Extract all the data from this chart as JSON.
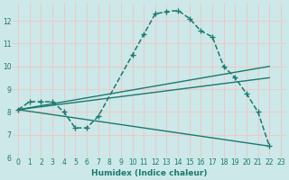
{
  "xlabel": "Humidex (Indice chaleur)",
  "bg_color": "#cce8e8",
  "grid_color": "#f0c8c8",
  "line_color": "#1a7a6e",
  "xlim": [
    -0.5,
    23.5
  ],
  "ylim": [
    6.0,
    12.8
  ],
  "yticks": [
    6,
    7,
    8,
    9,
    10,
    11,
    12
  ],
  "xticks": [
    0,
    1,
    2,
    3,
    4,
    5,
    6,
    7,
    8,
    9,
    10,
    11,
    12,
    13,
    14,
    15,
    16,
    17,
    18,
    19,
    20,
    21,
    22,
    23
  ],
  "series": [
    {
      "x": [
        0,
        1,
        2,
        3,
        4,
        5,
        6,
        7,
        10,
        11,
        12,
        13,
        14,
        15,
        16,
        17,
        18,
        19,
        20,
        21,
        22
      ],
      "y": [
        8.1,
        8.45,
        8.45,
        8.45,
        8.0,
        7.3,
        7.3,
        7.8,
        10.5,
        11.4,
        12.3,
        12.4,
        12.45,
        12.1,
        11.55,
        11.3,
        10.0,
        9.5,
        8.8,
        8.0,
        6.5
      ],
      "marker": true,
      "linewidth": 1.1,
      "linestyle": "--"
    },
    {
      "x": [
        0,
        22
      ],
      "y": [
        8.1,
        10.0
      ],
      "marker": false,
      "linewidth": 1.0,
      "linestyle": "-"
    },
    {
      "x": [
        0,
        22
      ],
      "y": [
        8.1,
        9.5
      ],
      "marker": false,
      "linewidth": 1.0,
      "linestyle": "-"
    },
    {
      "x": [
        0,
        22
      ],
      "y": [
        8.1,
        6.5
      ],
      "marker": false,
      "linewidth": 1.0,
      "linestyle": "-"
    }
  ]
}
